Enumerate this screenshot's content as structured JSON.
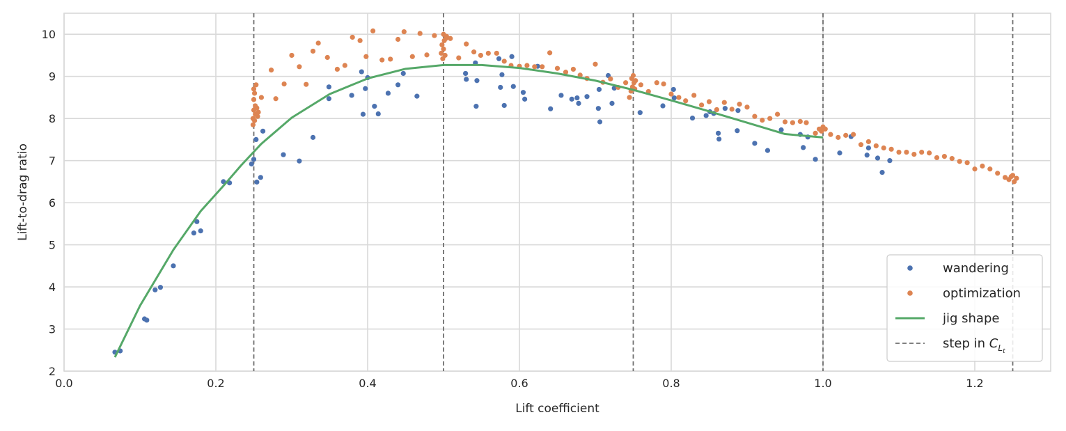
{
  "chart_data": {
    "type": "scatter",
    "xlabel": "Lift coefficient",
    "ylabel": "Lift-to-drag ratio",
    "xlim": [
      0.0,
      1.3
    ],
    "ylim": [
      2,
      10.5
    ],
    "xticks": [
      0.0,
      0.2,
      0.4,
      0.6,
      0.8,
      1.0,
      1.2
    ],
    "xtick_labels": [
      "0.0",
      "0.2",
      "0.4",
      "0.6",
      "0.8",
      "1.0",
      "1.2"
    ],
    "yticks": [
      2,
      3,
      4,
      5,
      6,
      7,
      8,
      9,
      10
    ],
    "ytick_labels": [
      "2",
      "3",
      "4",
      "5",
      "6",
      "7",
      "8",
      "9",
      "10"
    ],
    "grid": true,
    "legend_position": "bottom-right",
    "colors": {
      "wandering": "#4c72b0",
      "optimization": "#dd8452",
      "jig": "#55a868",
      "step": "#6e6e6e"
    },
    "series": [
      {
        "name": "wandering",
        "kind": "scatter",
        "points": [
          [
            0.067,
            2.45
          ],
          [
            0.074,
            2.48
          ],
          [
            0.106,
            3.24
          ],
          [
            0.109,
            3.21
          ],
          [
            0.12,
            3.93
          ],
          [
            0.127,
            3.99
          ],
          [
            0.144,
            4.5
          ],
          [
            0.171,
            5.28
          ],
          [
            0.175,
            5.55
          ],
          [
            0.18,
            5.33
          ],
          [
            0.21,
            6.5
          ],
          [
            0.218,
            6.47
          ],
          [
            0.247,
            6.92
          ],
          [
            0.25,
            7.03
          ],
          [
            0.253,
            7.5
          ],
          [
            0.254,
            6.49
          ],
          [
            0.259,
            6.6
          ],
          [
            0.262,
            7.7
          ],
          [
            0.289,
            7.14
          ],
          [
            0.31,
            6.99
          ],
          [
            0.328,
            7.55
          ],
          [
            0.349,
            8.47
          ],
          [
            0.349,
            8.75
          ],
          [
            0.379,
            8.55
          ],
          [
            0.392,
            9.11
          ],
          [
            0.394,
            8.1
          ],
          [
            0.397,
            8.71
          ],
          [
            0.4,
            8.97
          ],
          [
            0.409,
            8.29
          ],
          [
            0.414,
            8.11
          ],
          [
            0.427,
            8.6
          ],
          [
            0.44,
            8.8
          ],
          [
            0.447,
            9.07
          ],
          [
            0.465,
            8.53
          ],
          [
            0.529,
            9.07
          ],
          [
            0.53,
            8.93
          ],
          [
            0.542,
            9.32
          ],
          [
            0.543,
            8.29
          ],
          [
            0.544,
            8.9
          ],
          [
            0.573,
            9.42
          ],
          [
            0.575,
            8.74
          ],
          [
            0.577,
            9.04
          ],
          [
            0.58,
            8.31
          ],
          [
            0.59,
            9.47
          ],
          [
            0.592,
            8.76
          ],
          [
            0.605,
            8.62
          ],
          [
            0.607,
            8.46
          ],
          [
            0.624,
            9.24
          ],
          [
            0.641,
            8.23
          ],
          [
            0.655,
            8.55
          ],
          [
            0.669,
            8.46
          ],
          [
            0.676,
            8.49
          ],
          [
            0.678,
            8.36
          ],
          [
            0.689,
            8.52
          ],
          [
            0.704,
            8.24
          ],
          [
            0.705,
            8.69
          ],
          [
            0.706,
            7.92
          ],
          [
            0.717,
            9.02
          ],
          [
            0.722,
            8.36
          ],
          [
            0.725,
            8.72
          ],
          [
            0.759,
            8.14
          ],
          [
            0.789,
            8.3
          ],
          [
            0.803,
            8.69
          ],
          [
            0.804,
            8.49
          ],
          [
            0.828,
            8.01
          ],
          [
            0.846,
            8.07
          ],
          [
            0.851,
            8.16
          ],
          [
            0.856,
            8.12
          ],
          [
            0.862,
            7.65
          ],
          [
            0.863,
            7.51
          ],
          [
            0.871,
            8.24
          ],
          [
            0.887,
            7.71
          ],
          [
            0.888,
            8.19
          ],
          [
            0.91,
            7.41
          ],
          [
            0.927,
            7.24
          ],
          [
            0.945,
            7.73
          ],
          [
            0.97,
            7.62
          ],
          [
            0.974,
            7.31
          ],
          [
            0.98,
            7.56
          ],
          [
            0.99,
            7.03
          ],
          [
            1.022,
            7.18
          ],
          [
            1.037,
            7.57
          ],
          [
            1.058,
            7.13
          ],
          [
            1.06,
            7.3
          ],
          [
            1.072,
            7.06
          ],
          [
            1.078,
            6.72
          ],
          [
            1.088,
            7.0
          ]
        ]
      },
      {
        "name": "optimization",
        "kind": "scatter",
        "points": [
          [
            0.249,
            7.85
          ],
          [
            0.249,
            8.0
          ],
          [
            0.25,
            8.2
          ],
          [
            0.25,
            8.45
          ],
          [
            0.25,
            8.7
          ],
          [
            0.251,
            7.95
          ],
          [
            0.251,
            8.6
          ],
          [
            0.252,
            8.3
          ],
          [
            0.252,
            8.1
          ],
          [
            0.253,
            8.8
          ],
          [
            0.254,
            8.25
          ],
          [
            0.255,
            8.05
          ],
          [
            0.256,
            8.15
          ],
          [
            0.26,
            8.5
          ],
          [
            0.273,
            9.15
          ],
          [
            0.279,
            8.47
          ],
          [
            0.29,
            8.82
          ],
          [
            0.3,
            9.5
          ],
          [
            0.31,
            9.23
          ],
          [
            0.319,
            8.81
          ],
          [
            0.328,
            9.6
          ],
          [
            0.335,
            9.79
          ],
          [
            0.347,
            9.45
          ],
          [
            0.36,
            9.17
          ],
          [
            0.37,
            9.26
          ],
          [
            0.38,
            9.93
          ],
          [
            0.39,
            9.85
          ],
          [
            0.398,
            9.47
          ],
          [
            0.407,
            10.08
          ],
          [
            0.419,
            9.39
          ],
          [
            0.43,
            9.41
          ],
          [
            0.44,
            9.88
          ],
          [
            0.448,
            10.06
          ],
          [
            0.459,
            9.47
          ],
          [
            0.469,
            10.02
          ],
          [
            0.478,
            9.51
          ],
          [
            0.488,
            9.97
          ],
          [
            0.497,
            9.55
          ],
          [
            0.498,
            9.75
          ],
          [
            0.499,
            9.42
          ],
          [
            0.5,
            10.0
          ],
          [
            0.5,
            9.65
          ],
          [
            0.501,
            9.85
          ],
          [
            0.502,
            9.5
          ],
          [
            0.503,
            9.9
          ],
          [
            0.504,
            9.95
          ],
          [
            0.509,
            9.9
          ],
          [
            0.52,
            9.44
          ],
          [
            0.53,
            9.77
          ],
          [
            0.54,
            9.58
          ],
          [
            0.549,
            9.5
          ],
          [
            0.559,
            9.55
          ],
          [
            0.57,
            9.55
          ],
          [
            0.58,
            9.36
          ],
          [
            0.589,
            9.26
          ],
          [
            0.6,
            9.24
          ],
          [
            0.61,
            9.26
          ],
          [
            0.62,
            9.23
          ],
          [
            0.63,
            9.23
          ],
          [
            0.64,
            9.56
          ],
          [
            0.65,
            9.19
          ],
          [
            0.661,
            9.1
          ],
          [
            0.671,
            9.17
          ],
          [
            0.68,
            9.03
          ],
          [
            0.689,
            8.95
          ],
          [
            0.7,
            9.29
          ],
          [
            0.71,
            8.86
          ],
          [
            0.72,
            8.94
          ],
          [
            0.73,
            8.74
          ],
          [
            0.74,
            8.85
          ],
          [
            0.745,
            8.5
          ],
          [
            0.747,
            8.65
          ],
          [
            0.748,
            8.95
          ],
          [
            0.749,
            8.75
          ],
          [
            0.75,
            9.02
          ],
          [
            0.751,
            8.85
          ],
          [
            0.752,
            8.7
          ],
          [
            0.753,
            8.9
          ],
          [
            0.76,
            8.8
          ],
          [
            0.77,
            8.64
          ],
          [
            0.781,
            8.85
          ],
          [
            0.79,
            8.82
          ],
          [
            0.8,
            8.58
          ],
          [
            0.81,
            8.5
          ],
          [
            0.819,
            8.42
          ],
          [
            0.83,
            8.55
          ],
          [
            0.84,
            8.32
          ],
          [
            0.85,
            8.4
          ],
          [
            0.86,
            8.21
          ],
          [
            0.87,
            8.38
          ],
          [
            0.88,
            8.22
          ],
          [
            0.89,
            8.34
          ],
          [
            0.9,
            8.27
          ],
          [
            0.91,
            8.05
          ],
          [
            0.92,
            7.96
          ],
          [
            0.93,
            8.0
          ],
          [
            0.94,
            8.1
          ],
          [
            0.95,
            7.92
          ],
          [
            0.96,
            7.9
          ],
          [
            0.97,
            7.93
          ],
          [
            0.978,
            7.9
          ],
          [
            0.99,
            7.65
          ],
          [
            0.995,
            7.75
          ],
          [
            0.998,
            7.7
          ],
          [
            1.0,
            7.8
          ],
          [
            1.003,
            7.75
          ],
          [
            1.01,
            7.62
          ],
          [
            1.02,
            7.55
          ],
          [
            1.03,
            7.6
          ],
          [
            1.04,
            7.62
          ],
          [
            1.05,
            7.38
          ],
          [
            1.06,
            7.45
          ],
          [
            1.07,
            7.35
          ],
          [
            1.08,
            7.3
          ],
          [
            1.09,
            7.27
          ],
          [
            1.1,
            7.2
          ],
          [
            1.11,
            7.2
          ],
          [
            1.12,
            7.15
          ],
          [
            1.13,
            7.2
          ],
          [
            1.14,
            7.18
          ],
          [
            1.15,
            7.07
          ],
          [
            1.16,
            7.1
          ],
          [
            1.17,
            7.05
          ],
          [
            1.18,
            6.98
          ],
          [
            1.19,
            6.95
          ],
          [
            1.2,
            6.8
          ],
          [
            1.21,
            6.87
          ],
          [
            1.22,
            6.8
          ],
          [
            1.23,
            6.7
          ],
          [
            1.24,
            6.6
          ],
          [
            1.245,
            6.55
          ],
          [
            1.248,
            6.62
          ],
          [
            1.25,
            6.65
          ],
          [
            1.252,
            6.5
          ],
          [
            1.255,
            6.58
          ]
        ]
      },
      {
        "name": "jig shape",
        "kind": "line",
        "points": [
          [
            0.067,
            2.33
          ],
          [
            0.1,
            3.55
          ],
          [
            0.144,
            4.88
          ],
          [
            0.18,
            5.8
          ],
          [
            0.21,
            6.4
          ],
          [
            0.233,
            6.88
          ],
          [
            0.26,
            7.4
          ],
          [
            0.3,
            8.02
          ],
          [
            0.35,
            8.58
          ],
          [
            0.4,
            8.95
          ],
          [
            0.45,
            9.18
          ],
          [
            0.5,
            9.27
          ],
          [
            0.55,
            9.27
          ],
          [
            0.6,
            9.2
          ],
          [
            0.65,
            9.07
          ],
          [
            0.7,
            8.9
          ],
          [
            0.75,
            8.68
          ],
          [
            0.8,
            8.43
          ],
          [
            0.85,
            8.17
          ],
          [
            0.9,
            7.9
          ],
          [
            0.95,
            7.63
          ],
          [
            1.0,
            7.55
          ]
        ]
      }
    ],
    "step_lines": [
      0.25,
      0.5,
      0.75,
      1.0,
      1.25
    ],
    "legend": [
      {
        "label": "wandering",
        "marker": "dot",
        "color_key": "wandering"
      },
      {
        "label": "optimization",
        "marker": "dot",
        "color_key": "optimization"
      },
      {
        "label": "jig shape",
        "marker": "line",
        "color_key": "jig"
      },
      {
        "label": "step in ",
        "math": "C",
        "math_sub": "L",
        "math_subsub": "t",
        "marker": "dash",
        "color_key": "step"
      }
    ]
  }
}
